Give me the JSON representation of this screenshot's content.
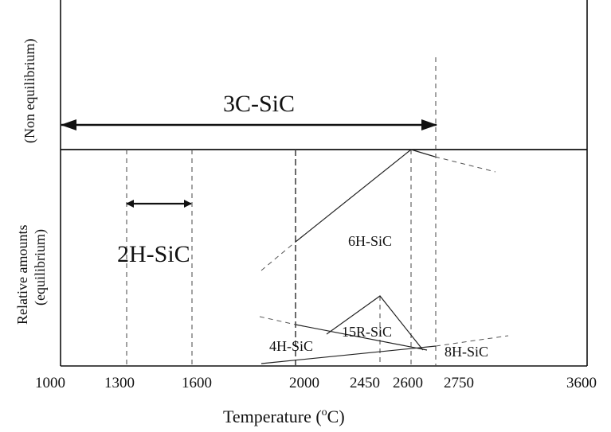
{
  "diagram": {
    "x_ticks": [
      "1000",
      "1300",
      "1600",
      "2000",
      "2450",
      "2600",
      "2750",
      "3600"
    ],
    "x_axis_title": "Temperature (",
    "x_axis_unit_sup": "o",
    "x_axis_unit": "C)",
    "upper_panel_label": "(Non equilibrium)",
    "lower_panel_label_line1": "Relative amounts",
    "lower_panel_label_line2": "(equilibrium)",
    "phases": {
      "p3c": "3C-SiC",
      "p2h": "2H-SiC",
      "p6h": "6H-SiC",
      "p15r": "15R-SiC",
      "p4h": "4H-SiC",
      "p8h": "8H-SiC"
    }
  }
}
